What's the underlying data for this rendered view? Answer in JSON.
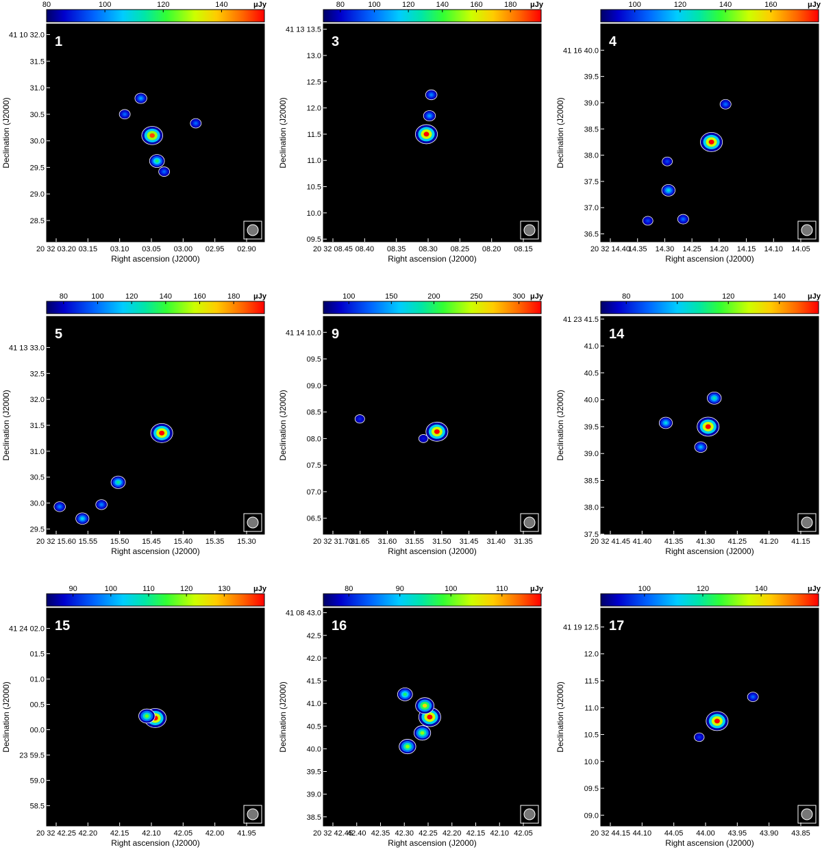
{
  "colorbar_unit": "μJy",
  "chart_data": [
    {
      "id": "1",
      "type": "heatmap",
      "colorbar_ticks": [
        80,
        100,
        120,
        140
      ],
      "colorbar_range": [
        80,
        150
      ],
      "x_ticks": [
        "20 32 03.20",
        "03.15",
        "03.10",
        "03.05",
        "03.00",
        "02.95",
        "02.90"
      ],
      "x_range": [
        3.225,
        2.86
      ],
      "y_ticks": [
        "28.5",
        "29.0",
        "29.5",
        "30.0",
        "30.5",
        "31.0",
        "31.5",
        "41 10 32.0"
      ],
      "y_ticks_values": [
        28.5,
        29.0,
        29.5,
        30.0,
        30.5,
        31.0,
        31.5,
        32.0
      ],
      "y_range": [
        28.1,
        32.2
      ],
      "xlabel": "Right ascension (J2000)",
      "ylabel": "Declination (J2000)",
      "sources": [
        {
          "x": 3.048,
          "y": 30.1,
          "peak": 145
        },
        {
          "x": 3.04,
          "y": 29.62,
          "peak": 115
        },
        {
          "x": 3.067,
          "y": 30.8,
          "peak": 100
        },
        {
          "x": 3.094,
          "y": 30.5,
          "peak": 95
        },
        {
          "x": 2.975,
          "y": 30.33,
          "peak": 95
        },
        {
          "x": 3.028,
          "y": 29.42,
          "peak": 95
        }
      ]
    },
    {
      "id": "3",
      "type": "heatmap",
      "colorbar_ticks": [
        80,
        100,
        120,
        140,
        160,
        180
      ],
      "colorbar_range": [
        70,
        190
      ],
      "x_ticks": [
        "20 32 08.45",
        "08.40",
        "08.35",
        "08.30",
        "08.25",
        "08.20",
        "08.15"
      ],
      "x_range": [
        8.455,
        8.1
      ],
      "y_ticks": [
        "09.5",
        "10.0",
        "10.5",
        "11.0",
        "11.5",
        "12.0",
        "12.5",
        "13.0",
        "41 13 13.5"
      ],
      "y_ticks_values": [
        9.5,
        10.0,
        10.5,
        11.0,
        11.5,
        12.0,
        12.5,
        13.0,
        13.5
      ],
      "y_range": [
        9.45,
        13.6
      ],
      "xlabel": "Right ascension (J2000)",
      "ylabel": "Declination (J2000)",
      "sources": [
        {
          "x": 8.287,
          "y": 11.5,
          "peak": 190
        },
        {
          "x": 8.282,
          "y": 11.85,
          "peak": 105
        },
        {
          "x": 8.279,
          "y": 12.25,
          "peak": 100
        }
      ]
    },
    {
      "id": "4",
      "type": "heatmap",
      "colorbar_ticks": [
        100,
        120,
        140,
        160
      ],
      "colorbar_range": [
        85,
        175
      ],
      "x_ticks": [
        "20 32 14.40",
        "14.35",
        "14.30",
        "14.25",
        "14.20",
        "14.15",
        "14.10",
        "14.05"
      ],
      "x_range": [
        14.41,
        14.04
      ],
      "y_ticks": [
        "36.5",
        "37.0",
        "37.5",
        "38.0",
        "38.5",
        "39.0",
        "39.5",
        "41 16 40.0"
      ],
      "y_ticks_values": [
        36.5,
        37.0,
        37.5,
        38.0,
        38.5,
        39.0,
        39.5,
        40.0
      ],
      "y_range": [
        36.35,
        40.5
      ],
      "xlabel": "Right ascension (J2000)",
      "ylabel": "Declination (J2000)",
      "sources": [
        {
          "x": 14.222,
          "y": 38.25,
          "peak": 175
        },
        {
          "x": 14.295,
          "y": 37.33,
          "peak": 120
        },
        {
          "x": 14.198,
          "y": 38.97,
          "peak": 105
        },
        {
          "x": 14.297,
          "y": 37.88,
          "peak": 100
        },
        {
          "x": 14.27,
          "y": 36.78,
          "peak": 105
        },
        {
          "x": 14.33,
          "y": 36.75,
          "peak": 100
        }
      ]
    },
    {
      "id": "5",
      "type": "heatmap",
      "colorbar_ticks": [
        80,
        100,
        120,
        140,
        160,
        180
      ],
      "colorbar_range": [
        70,
        190
      ],
      "x_ticks": [
        "20 32 15.60",
        "15.55",
        "15.50",
        "15.45",
        "15.40",
        "15.35",
        "15.30"
      ],
      "x_range": [
        15.655,
        15.29
      ],
      "y_ticks": [
        "29.5",
        "30.0",
        "30.5",
        "31.0",
        "31.5",
        "32.0",
        "32.5",
        "41 13 33.0"
      ],
      "y_ticks_values": [
        29.5,
        30.0,
        30.5,
        31.0,
        31.5,
        32.0,
        32.5,
        33.0
      ],
      "y_range": [
        29.4,
        33.6
      ],
      "xlabel": "Right ascension (J2000)",
      "ylabel": "Declination (J2000)",
      "sources": [
        {
          "x": 15.462,
          "y": 31.35,
          "peak": 190
        },
        {
          "x": 15.535,
          "y": 30.4,
          "peak": 125
        },
        {
          "x": 15.595,
          "y": 29.7,
          "peak": 115
        },
        {
          "x": 15.633,
          "y": 29.93,
          "peak": 100
        },
        {
          "x": 15.563,
          "y": 29.97,
          "peak": 100
        }
      ]
    },
    {
      "id": "9",
      "type": "heatmap",
      "colorbar_ticks": [
        100,
        150,
        200,
        250,
        300
      ],
      "colorbar_range": [
        70,
        310
      ],
      "x_ticks": [
        "20 32 31.70",
        "31.65",
        "31.60",
        "31.55",
        "31.50",
        "31.45",
        "31.40",
        "31.35"
      ],
      "x_range": [
        31.715,
        31.345
      ],
      "y_ticks": [
        "06.5",
        "07.0",
        "07.5",
        "08.0",
        "08.5",
        "09.0",
        "09.5",
        "41 14 10.0"
      ],
      "y_ticks_values": [
        6.5,
        7.0,
        7.5,
        8.0,
        8.5,
        9.0,
        9.5,
        10.0
      ],
      "y_range": [
        6.2,
        10.3
      ],
      "xlabel": "Right ascension (J2000)",
      "ylabel": "Declination (J2000)",
      "sources": [
        {
          "x": 31.522,
          "y": 8.13,
          "peak": 310
        },
        {
          "x": 31.653,
          "y": 8.37,
          "peak": 100
        },
        {
          "x": 31.545,
          "y": 8.0,
          "peak": 95
        }
      ]
    },
    {
      "id": "14",
      "type": "heatmap",
      "colorbar_ticks": [
        80,
        100,
        120,
        140
      ],
      "colorbar_range": [
        70,
        150
      ],
      "x_ticks": [
        "20 32 41.45",
        "41.40",
        "41.35",
        "41.30",
        "41.25",
        "41.20",
        "41.15"
      ],
      "x_range": [
        41.475,
        41.12
      ],
      "y_ticks": [
        "37.5",
        "38.0",
        "38.5",
        "39.0",
        "39.5",
        "40.0",
        "40.5",
        "41.0",
        "41 23 41.5"
      ],
      "y_ticks_values": [
        37.5,
        38.0,
        38.5,
        39.0,
        39.5,
        40.0,
        40.5,
        41.0,
        41.5
      ],
      "y_range": [
        37.5,
        41.55
      ],
      "xlabel": "Right ascension (J2000)",
      "ylabel": "Declination (J2000)",
      "sources": [
        {
          "x": 41.3,
          "y": 39.5,
          "peak": 150
        },
        {
          "x": 41.29,
          "y": 40.03,
          "peak": 105
        },
        {
          "x": 41.369,
          "y": 39.57,
          "peak": 100
        },
        {
          "x": 41.312,
          "y": 39.12,
          "peak": 95
        }
      ]
    },
    {
      "id": "15",
      "type": "heatmap",
      "colorbar_ticks": [
        90,
        100,
        110,
        120,
        130
      ],
      "colorbar_range": [
        83,
        137
      ],
      "x_ticks": [
        "20 32 42.25",
        "42.20",
        "42.15",
        "42.10",
        "42.05",
        "42.00",
        "41.95"
      ],
      "x_range": [
        42.265,
        41.9
      ],
      "y_ticks": [
        "58.5",
        "59.0",
        "23 59.5",
        "00.0",
        "00.5",
        "01.0",
        "01.5",
        "41 24 02.0"
      ],
      "y_ticks_values": [
        -1.5,
        -1.0,
        -0.5,
        0.0,
        0.5,
        1.0,
        1.5,
        2.0
      ],
      "y_range": [
        -1.9,
        2.4
      ],
      "xlabel": "Right ascension (J2000)",
      "ylabel": "Declination (J2000)",
      "sources": [
        {
          "x": 42.083,
          "y": 0.23,
          "peak": 137
        },
        {
          "x": 42.097,
          "y": 0.27,
          "peak": 115
        }
      ]
    },
    {
      "id": "16",
      "type": "heatmap",
      "colorbar_ticks": [
        80,
        90,
        100,
        110
      ],
      "colorbar_range": [
        75,
        115
      ],
      "x_ticks": [
        "20 32 42.45",
        "42.40",
        "42.35",
        "42.30",
        "42.25",
        "42.20",
        "42.15",
        "42.10",
        "42.05"
      ],
      "x_range": [
        42.46,
        42.02
      ],
      "y_ticks": [
        "38.5",
        "39.0",
        "39.5",
        "40.0",
        "40.5",
        "41.0",
        "41.5",
        "42.0",
        "42.5",
        "41 08 43.0"
      ],
      "y_ticks_values": [
        38.5,
        39.0,
        39.5,
        40.0,
        40.5,
        41.0,
        41.5,
        42.0,
        42.5,
        43.0
      ],
      "y_range": [
        38.3,
        43.1
      ],
      "xlabel": "Right ascension (J2000)",
      "ylabel": "Declination (J2000)",
      "sources": [
        {
          "x": 42.245,
          "y": 40.7,
          "peak": 115
        },
        {
          "x": 42.255,
          "y": 40.95,
          "peak": 105
        },
        {
          "x": 42.26,
          "y": 40.35,
          "peak": 100
        },
        {
          "x": 42.29,
          "y": 40.05,
          "peak": 100
        },
        {
          "x": 42.295,
          "y": 41.2,
          "peak": 95
        }
      ]
    },
    {
      "id": "17",
      "type": "heatmap",
      "colorbar_ticks": [
        100,
        120,
        140
      ],
      "colorbar_range": [
        85,
        155
      ],
      "x_ticks": [
        "20 32 44.15",
        "44.10",
        "44.05",
        "44.00",
        "43.95",
        "43.90",
        "43.85"
      ],
      "x_range": [
        44.165,
        43.8
      ],
      "y_ticks": [
        "09.0",
        "09.5",
        "10.0",
        "10.5",
        "11.0",
        "11.5",
        "12.0",
        "41 19 12.5"
      ],
      "y_ticks_values": [
        9.0,
        9.5,
        10.0,
        10.5,
        11.0,
        11.5,
        12.0,
        12.5
      ],
      "y_range": [
        8.8,
        12.85
      ],
      "xlabel": "Right ascension (J2000)",
      "ylabel": "Declination (J2000)",
      "sources": [
        {
          "x": 43.97,
          "y": 10.75,
          "peak": 155
        },
        {
          "x": 43.91,
          "y": 11.2,
          "peak": 100
        },
        {
          "x": 44.0,
          "y": 10.45,
          "peak": 95
        }
      ]
    }
  ]
}
